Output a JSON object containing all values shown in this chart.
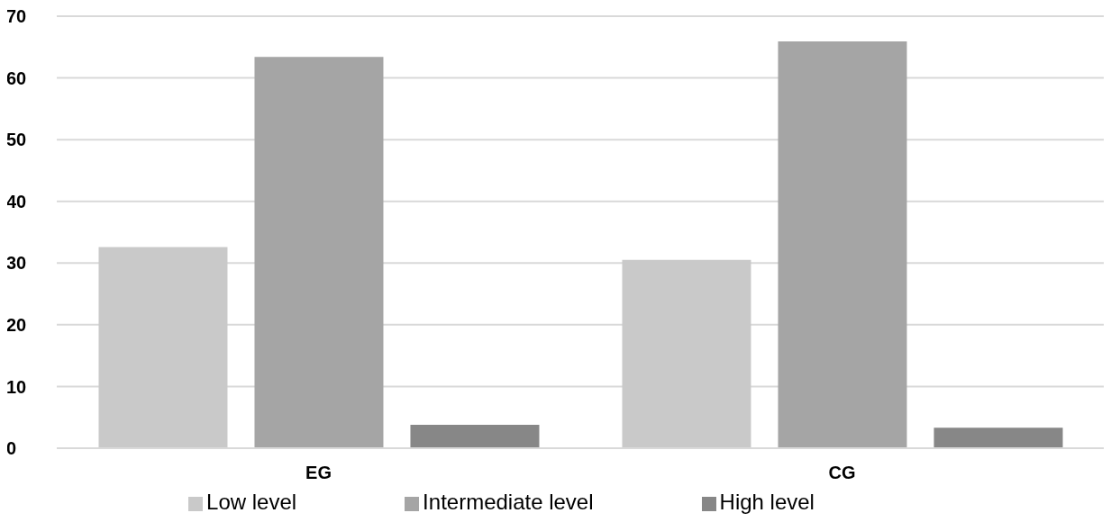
{
  "chart_data": {
    "type": "bar",
    "categories": [
      "EG",
      "CG"
    ],
    "series": [
      {
        "name": "Low level",
        "color": "#c9c9c9",
        "values": [
          32.6,
          30.5
        ]
      },
      {
        "name": "Intermediate level",
        "color": "#a5a5a5",
        "values": [
          63.4,
          65.9
        ]
      },
      {
        "name": "High level",
        "color": "#878787",
        "values": [
          3.8,
          3.3
        ]
      }
    ],
    "ylim": [
      0,
      70
    ],
    "yticks": [
      0,
      10,
      20,
      30,
      40,
      50,
      60,
      70
    ],
    "grid": "y",
    "legend": "bottom"
  }
}
